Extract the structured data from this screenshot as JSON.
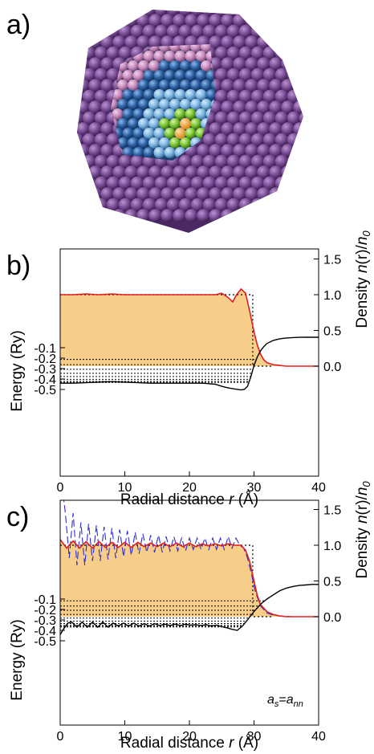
{
  "panels": {
    "a": {
      "label": "a)"
    },
    "b": {
      "label": "b)"
    },
    "c": {
      "label": "c)",
      "annotation": {
        "base": "a",
        "sub1": "s",
        "eq": "=",
        "base2": "a",
        "sub2": "nn"
      }
    }
  },
  "colors": {
    "density_fill": "#f7cd8a",
    "density_line": "#e21f1f",
    "potential_line": "#000000",
    "level_line": "#000000",
    "jellium_line": "#000000",
    "atomic_density_dashed": "#2b2bd6",
    "cluster_outer": "#7a4d96",
    "cluster_pink": "#d9a6cf",
    "cluster_blue_dark": "#2d63a8",
    "cluster_blue_light": "#7fb7e3",
    "cluster_green": "#79c431",
    "cluster_orange": "#f5a81e"
  },
  "chart_data": [
    {
      "type": "line",
      "panel": "b",
      "xlabel": "Radial distance r (Å)",
      "xlabel_parts": {
        "pre": "Radial distance ",
        "var": "r",
        "post": " (Å)"
      },
      "ylabel_left": "Energy (Ry)",
      "ylabel_right": "Density n(r)/n0",
      "ylabel_right_parts": {
        "pre": "Density ",
        "n": "n",
        "r": "(r)/",
        "n0": "n",
        "sub": "0"
      },
      "xlim": [
        0,
        40
      ],
      "x_ticks": [
        "0",
        "10",
        "20",
        "30",
        "40"
      ],
      "density_ticks": [
        "0.0",
        "0.5",
        "1.0",
        "1.5"
      ],
      "energy_ticks": [
        "-0.1",
        "-0.2",
        "-0.3",
        "-0.4",
        "-0.5"
      ],
      "energy_levels": [
        -0.212,
        -0.262,
        -0.307,
        -0.345,
        -0.376,
        -0.403,
        -0.422,
        -0.433
      ],
      "series": [
        {
          "role": "density",
          "x": [
            0,
            2,
            4,
            6,
            8,
            10,
            12,
            14,
            16,
            18,
            20,
            22,
            24,
            25,
            26,
            26.7,
            27.3,
            28,
            28.7,
            29.3,
            30,
            30.5,
            31,
            31.5,
            32,
            33,
            34,
            35,
            36,
            37,
            38,
            40
          ],
          "y": [
            1.0,
            1.0,
            1.01,
            1.0,
            1.01,
            1.0,
            1.0,
            1.0,
            1.0,
            1.0,
            1.0,
            1.0,
            1.0,
            1.02,
            0.96,
            0.9,
            1.0,
            1.08,
            1.02,
            0.78,
            0.48,
            0.3,
            0.17,
            0.09,
            0.05,
            0.02,
            0.01,
            0.0,
            0.0,
            0.0,
            0.0,
            0.0
          ]
        },
        {
          "role": "jellium",
          "x": [
            0,
            29.8,
            29.8,
            33
          ],
          "y": [
            1.0,
            1.0,
            0.0,
            0.0
          ]
        },
        {
          "role": "potential",
          "x": [
            0,
            2,
            4,
            6,
            8,
            10,
            12,
            14,
            16,
            18,
            20,
            22,
            24,
            25,
            26,
            27,
            28,
            28.5,
            29,
            29.5,
            30,
            30.5,
            31,
            31.5,
            32,
            33,
            34,
            35,
            36,
            37,
            38,
            39,
            40
          ],
          "y": [
            -0.44,
            -0.44,
            -0.435,
            -0.43,
            -0.425,
            -0.43,
            -0.435,
            -0.44,
            -0.44,
            -0.44,
            -0.44,
            -0.44,
            -0.45,
            -0.47,
            -0.485,
            -0.495,
            -0.505,
            -0.5,
            -0.47,
            -0.38,
            -0.27,
            -0.19,
            -0.13,
            -0.09,
            -0.06,
            -0.03,
            -0.015,
            -0.007,
            -0.003,
            -0.001,
            0.0,
            0.0,
            0.0
          ]
        }
      ]
    },
    {
      "type": "line",
      "panel": "c",
      "xlabel": "Radial distance r (Å)",
      "xlabel_parts": {
        "pre": "Radial distance ",
        "var": "r",
        "post": " (Å)"
      },
      "ylabel_left": "Energy (Ry)",
      "ylabel_right": "Density n(r)/n0",
      "ylabel_right_parts": {
        "pre": "Density ",
        "n": "n",
        "r": "(r)/",
        "n0": "n",
        "sub": "0"
      },
      "xlim": [
        0,
        40
      ],
      "x_ticks": [
        "0",
        "10",
        "20",
        "30",
        "40"
      ],
      "density_ticks": [
        "0.0",
        "0.5",
        "1.0",
        "1.5"
      ],
      "energy_ticks": [
        "-0.1",
        "-0.2",
        "-0.3",
        "-0.4",
        "-0.5"
      ],
      "energy_levels": [
        -0.117,
        -0.167,
        -0.208,
        -0.247,
        -0.282,
        -0.312,
        -0.335,
        -0.352,
        -0.362,
        -0.368
      ],
      "series": [
        {
          "role": "atomic_density",
          "dashed": true,
          "x": [
            0.3,
            0.8,
            1.4,
            2,
            2.6,
            3.2,
            3.8,
            4.4,
            5,
            5.6,
            6.2,
            6.8,
            7.4,
            8,
            8.6,
            9.2,
            9.8,
            10.4,
            11,
            11.6,
            12.2,
            12.8,
            13.4,
            14,
            14.6,
            15.2,
            15.8,
            16.4,
            17,
            17.6,
            18.2,
            18.8,
            19.4,
            20,
            20.6,
            21.2,
            21.8,
            22.4,
            23,
            23.6,
            24.2,
            24.8,
            25.4,
            26,
            26.6,
            27.2,
            27.8,
            28.4,
            29,
            29.6,
            30.2,
            31,
            32,
            33,
            34,
            36,
            38,
            40
          ],
          "y": [
            1.85,
            1.45,
            0.82,
            1.45,
            0.72,
            1.32,
            0.72,
            1.3,
            0.78,
            1.28,
            0.78,
            1.26,
            0.8,
            1.24,
            0.82,
            1.22,
            0.84,
            1.2,
            0.86,
            1.18,
            0.88,
            1.16,
            0.9,
            1.14,
            0.9,
            1.14,
            0.9,
            1.12,
            0.92,
            1.12,
            0.92,
            1.1,
            0.92,
            1.1,
            0.94,
            1.1,
            0.94,
            1.1,
            0.94,
            1.1,
            0.94,
            1.1,
            0.94,
            1.12,
            0.96,
            1.1,
            1.0,
            0.96,
            0.82,
            0.6,
            0.35,
            0.15,
            0.05,
            0.02,
            0.01,
            0.0,
            0.0,
            0.0
          ]
        },
        {
          "role": "density",
          "x": [
            0,
            1,
            2,
            3,
            4,
            5,
            6,
            7,
            8,
            9,
            10,
            11,
            12,
            13,
            14,
            15,
            16,
            17,
            18,
            19,
            20,
            21,
            22,
            23,
            24,
            25,
            26,
            27,
            28,
            28.7,
            29.3,
            30,
            30.5,
            31,
            32,
            33,
            34,
            35,
            36,
            38,
            40
          ],
          "y": [
            1.08,
            0.96,
            1.06,
            0.96,
            1.05,
            0.96,
            1.05,
            0.97,
            1.04,
            0.97,
            1.04,
            0.97,
            1.04,
            0.98,
            1.03,
            0.98,
            1.03,
            0.98,
            1.03,
            0.98,
            1.03,
            0.98,
            1.02,
            0.99,
            1.02,
            0.99,
            1.02,
            1.0,
            1.0,
            0.93,
            0.78,
            0.5,
            0.3,
            0.17,
            0.07,
            0.03,
            0.01,
            0.0,
            0.0,
            0.0,
            0.0
          ]
        },
        {
          "role": "jellium",
          "x": [
            0,
            29.8,
            29.8,
            33
          ],
          "y": [
            1.0,
            1.0,
            0.0,
            0.0
          ]
        },
        {
          "role": "potential",
          "x": [
            0,
            0.6,
            1.2,
            1.8,
            2.6,
            3.4,
            4.2,
            5,
            5.8,
            6.6,
            7.4,
            8.2,
            9,
            9.8,
            10.6,
            11.4,
            12.2,
            13,
            13.8,
            14.6,
            15.4,
            16.2,
            17,
            17.8,
            18.6,
            19.4,
            20.2,
            21,
            21.8,
            22.6,
            23.4,
            24.2,
            25,
            25.8,
            26.6,
            27.4,
            28.2,
            29,
            30,
            31,
            32,
            33,
            34,
            35,
            36,
            37,
            38,
            39,
            40
          ],
          "y": [
            -0.44,
            -0.38,
            -0.33,
            -0.32,
            -0.37,
            -0.32,
            -0.37,
            -0.32,
            -0.37,
            -0.32,
            -0.37,
            -0.33,
            -0.36,
            -0.33,
            -0.36,
            -0.33,
            -0.36,
            -0.335,
            -0.36,
            -0.335,
            -0.355,
            -0.34,
            -0.355,
            -0.34,
            -0.355,
            -0.34,
            -0.35,
            -0.345,
            -0.355,
            -0.345,
            -0.36,
            -0.35,
            -0.365,
            -0.375,
            -0.39,
            -0.4,
            -0.36,
            -0.3,
            -0.22,
            -0.15,
            -0.1,
            -0.06,
            -0.02,
            0.005,
            0.02,
            0.03,
            0.035,
            0.04,
            0.04
          ]
        }
      ]
    }
  ]
}
